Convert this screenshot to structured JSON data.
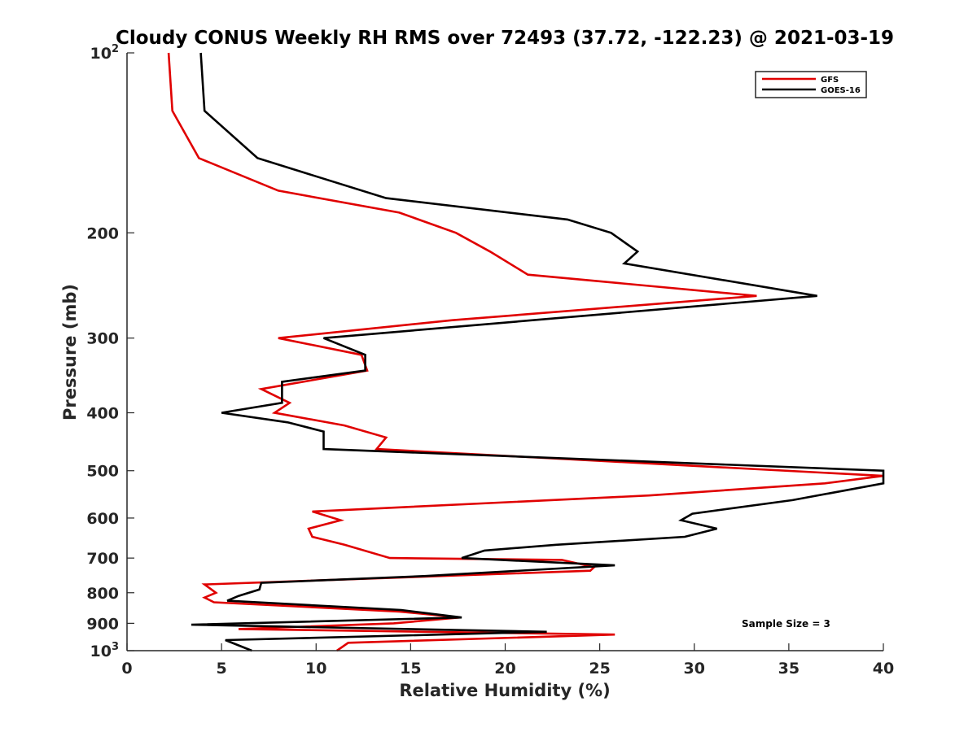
{
  "chart_data": {
    "type": "line",
    "title": "Cloudy CONUS Weekly RH RMS over 72493 (37.72, -122.23) @ 2021-03-19",
    "xlabel": "Relative Humidity (%)",
    "ylabel": "Pressure (mb)",
    "xlim": [
      0,
      40
    ],
    "ylim": [
      100,
      1000
    ],
    "y_scale": "log",
    "y_reversed": true,
    "x_ticks": [
      "0",
      "5",
      "10",
      "15",
      "20",
      "25",
      "30",
      "35",
      "40"
    ],
    "y_ticks": [
      {
        "value": 100,
        "base": "10",
        "exp": "2"
      },
      {
        "value": 200,
        "label": "200"
      },
      {
        "value": 300,
        "label": "300"
      },
      {
        "value": 400,
        "label": "400"
      },
      {
        "value": 500,
        "label": "500"
      },
      {
        "value": 600,
        "label": "600"
      },
      {
        "value": 700,
        "label": "700"
      },
      {
        "value": 800,
        "label": "800"
      },
      {
        "value": 900,
        "label": "900"
      },
      {
        "value": 1000,
        "base": "10",
        "exp": "3"
      }
    ],
    "grid": false,
    "legend_position": "top-right",
    "annotation": "Sample Size = 3",
    "series": [
      {
        "name": "GFS",
        "color": "#e00000",
        "points": [
          [
            2.2,
            100
          ],
          [
            2.4,
            125
          ],
          [
            3.8,
            150
          ],
          [
            8.0,
            170
          ],
          [
            14.4,
            185
          ],
          [
            17.4,
            200
          ],
          [
            19.2,
            215
          ],
          [
            21.2,
            235
          ],
          [
            33.3,
            255
          ],
          [
            17.2,
            280
          ],
          [
            8.0,
            300
          ],
          [
            12.4,
            320
          ],
          [
            12.7,
            340
          ],
          [
            7.1,
            365
          ],
          [
            8.6,
            385
          ],
          [
            7.8,
            400
          ],
          [
            11.5,
            420
          ],
          [
            13.7,
            440
          ],
          [
            13.2,
            460
          ],
          [
            40.0,
            510
          ],
          [
            36.9,
            525
          ],
          [
            27.6,
            550
          ],
          [
            9.8,
            585
          ],
          [
            11.3,
            605
          ],
          [
            9.6,
            625
          ],
          [
            9.8,
            645
          ],
          [
            11.5,
            665
          ],
          [
            13.9,
            700
          ],
          [
            23.0,
            705
          ],
          [
            24.7,
            725
          ],
          [
            24.5,
            735
          ],
          [
            4.1,
            775
          ],
          [
            4.7,
            800
          ],
          [
            4.1,
            815
          ],
          [
            4.6,
            830
          ],
          [
            14.4,
            860
          ],
          [
            17.6,
            880
          ],
          [
            14.1,
            900
          ],
          [
            5.9,
            920
          ],
          [
            25.8,
            940
          ],
          [
            11.7,
            970
          ],
          [
            11.1,
            1000
          ]
        ]
      },
      {
        "name": "GOES-16",
        "color": "#000000",
        "points": [
          [
            3.9,
            100
          ],
          [
            4.1,
            125
          ],
          [
            6.9,
            150
          ],
          [
            13.7,
            175
          ],
          [
            23.3,
            190
          ],
          [
            25.6,
            200
          ],
          [
            27.0,
            215
          ],
          [
            26.3,
            225
          ],
          [
            36.5,
            255
          ],
          [
            10.4,
            300
          ],
          [
            12.6,
            320
          ],
          [
            12.6,
            340
          ],
          [
            8.2,
            355
          ],
          [
            8.2,
            385
          ],
          [
            5.0,
            400
          ],
          [
            8.5,
            415
          ],
          [
            10.4,
            430
          ],
          [
            10.4,
            460
          ],
          [
            40.0,
            500
          ],
          [
            40.0,
            525
          ],
          [
            37.2,
            545
          ],
          [
            35.2,
            560
          ],
          [
            29.9,
            590
          ],
          [
            29.3,
            605
          ],
          [
            31.2,
            625
          ],
          [
            29.5,
            645
          ],
          [
            22.7,
            665
          ],
          [
            18.9,
            680
          ],
          [
            17.7,
            700
          ],
          [
            25.8,
            720
          ],
          [
            15.8,
            750
          ],
          [
            7.1,
            770
          ],
          [
            7.0,
            790
          ],
          [
            5.9,
            810
          ],
          [
            5.3,
            825
          ],
          [
            14.5,
            855
          ],
          [
            17.7,
            880
          ],
          [
            3.4,
            905
          ],
          [
            22.2,
            930
          ],
          [
            5.2,
            960
          ],
          [
            6.6,
            1000
          ]
        ]
      }
    ]
  }
}
